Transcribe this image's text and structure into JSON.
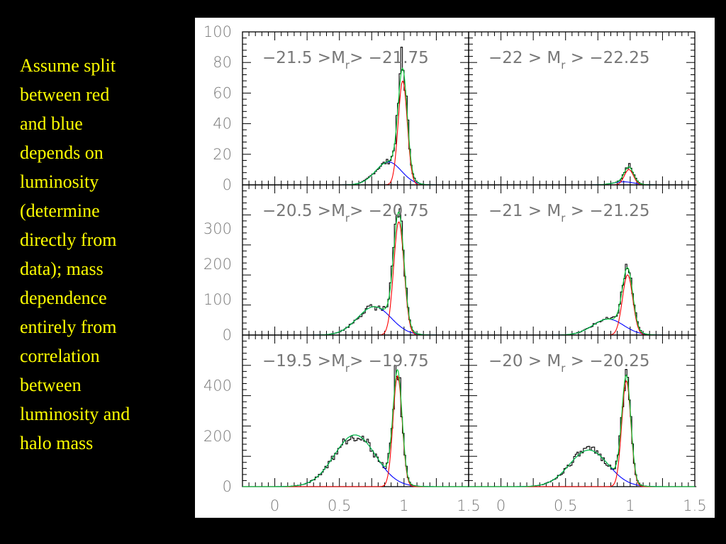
{
  "caption": "Assume split\nbetween red\nand blue\ndepends on\nluminosity\n(determine\ndirectly from\ndata); mass\ndependence\nentirely from\ncorrelation\nbetween\nluminosity and\nhalo mass",
  "colors": {
    "background": "#000000",
    "caption_text": "#ffff00",
    "red_fit": "#ff0000",
    "blue_fit": "#0000ff",
    "total_fit": "#00cc33",
    "histogram": "#000000"
  },
  "chart_data": {
    "type": "histogram-grid",
    "grid": {
      "rows": 3,
      "cols": 2
    },
    "xlim": [
      -0.25,
      1.5
    ],
    "x_ticks": [
      "0",
      "0.5",
      "1",
      "1.5"
    ],
    "x_tick_values": [
      0,
      0.5,
      1,
      1.5
    ],
    "series_names": [
      "histogram",
      "red component",
      "blue component",
      "total fit"
    ],
    "panels": [
      {
        "title": "−21.5 >M_r> −21.75",
        "title_main": "−21.5 >M",
        "title_sub": "r",
        "title_tail": "> −21.75",
        "ylim": [
          0,
          100
        ],
        "y_ticks": [
          0,
          20,
          40,
          60,
          80,
          100
        ],
        "red": {
          "amp": 68,
          "mu": 0.99,
          "sigma": 0.035
        },
        "blue": {
          "amp": 15,
          "mu": 0.88,
          "sigma": 0.1
        },
        "green_peak": 77,
        "hist_peak": 90
      },
      {
        "title": "−22 > M_r > −22.25",
        "title_main": "−22 > M",
        "title_sub": "r",
        "title_tail": " > −22.25",
        "ylim": [
          0,
          100
        ],
        "y_ticks": [
          0,
          20,
          40,
          60,
          80,
          100
        ],
        "red": {
          "amp": 10,
          "mu": 0.99,
          "sigma": 0.035
        },
        "blue": {
          "amp": 2,
          "mu": 0.95,
          "sigma": 0.08
        },
        "green_peak": 11,
        "hist_peak": 14
      },
      {
        "title": "−20.5 >M_r> −20.75",
        "title_main": "−20.5 >M",
        "title_sub": "r",
        "title_tail": "> −20.75",
        "ylim": [
          0,
          360
        ],
        "y_ticks": [
          0,
          100,
          200,
          300
        ],
        "red": {
          "amp": 320,
          "mu": 0.96,
          "sigma": 0.04
        },
        "blue": {
          "amp": 80,
          "mu": 0.77,
          "sigma": 0.13
        },
        "green_peak": 330,
        "hist_peak": 360
      },
      {
        "title": "−21 > M_r > −21.25",
        "title_main": "−21 > M",
        "title_sub": "r",
        "title_tail": " > −21.25",
        "ylim": [
          0,
          360
        ],
        "y_ticks": [
          0,
          100,
          200,
          300
        ],
        "red": {
          "amp": 170,
          "mu": 0.98,
          "sigma": 0.04
        },
        "blue": {
          "amp": 45,
          "mu": 0.83,
          "sigma": 0.12
        },
        "green_peak": 190,
        "hist_peak": 200
      },
      {
        "title": "−19.5 >M_r> −19.75",
        "title_main": "−19.5 >M",
        "title_sub": "r",
        "title_tail": "> −19.75",
        "ylim": [
          0,
          520
        ],
        "y_ticks": [
          0,
          200,
          400
        ],
        "red": {
          "amp": 440,
          "mu": 0.95,
          "sigma": 0.035
        },
        "blue": {
          "amp": 205,
          "mu": 0.62,
          "sigma": 0.16
        },
        "green_peak": 480,
        "hist_peak": 480
      },
      {
        "title": "−20 > M_r > −20.25",
        "title_main": "−20 > M",
        "title_sub": "r",
        "title_tail": " > −20.25",
        "ylim": [
          0,
          520
        ],
        "y_ticks": [
          0,
          200,
          400
        ],
        "red": {
          "amp": 420,
          "mu": 0.97,
          "sigma": 0.035
        },
        "blue": {
          "amp": 145,
          "mu": 0.68,
          "sigma": 0.15
        },
        "green_peak": 450,
        "hist_peak": 465
      }
    ]
  }
}
